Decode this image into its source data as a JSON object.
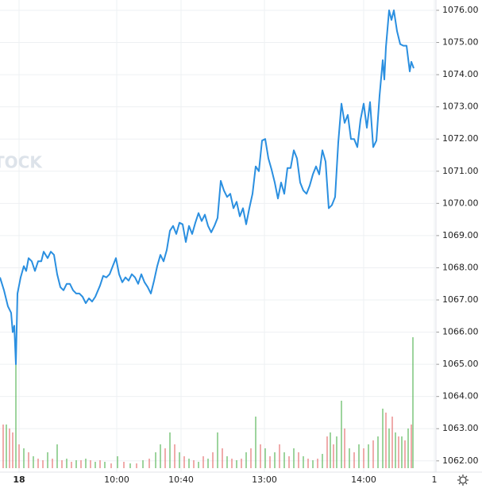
{
  "chart_data": {
    "type": "line",
    "watermark": "TOCK",
    "xlim": [
      0,
      548
    ],
    "ylim": [
      1061.65,
      1076.32
    ],
    "xticks": [
      {
        "value": 24,
        "label": "18"
      },
      {
        "value": 147,
        "label": "10:00"
      },
      {
        "value": 228,
        "label": "10:40"
      },
      {
        "value": 333,
        "label": "13:00"
      },
      {
        "value": 458,
        "label": "14:00"
      },
      {
        "value": 547,
        "label": "1"
      }
    ],
    "yticks": [
      {
        "value": 1062,
        "label": "1062.00"
      },
      {
        "value": 1063,
        "label": "1063.00"
      },
      {
        "value": 1064,
        "label": "1064.00"
      },
      {
        "value": 1065,
        "label": "1065.00"
      },
      {
        "value": 1066,
        "label": "1066.00"
      },
      {
        "value": 1067,
        "label": "1067.00"
      },
      {
        "value": 1068,
        "label": "1068.00"
      },
      {
        "value": 1069,
        "label": "1069.00"
      },
      {
        "value": 1070,
        "label": "1070.00"
      },
      {
        "value": 1071,
        "label": "1071.00"
      },
      {
        "value": 1072,
        "label": "1072.00"
      },
      {
        "value": 1073,
        "label": "1073.00"
      },
      {
        "value": 1074,
        "label": "1074.00"
      },
      {
        "value": 1075,
        "label": "1075.00"
      },
      {
        "value": 1076,
        "label": "1076.00"
      }
    ],
    "grid": true,
    "series": [
      {
        "color": "#2a8fe0",
        "x": [
          0,
          5,
          10,
          14,
          16,
          18,
          20,
          22,
          26,
          30,
          33,
          36,
          40,
          44,
          48,
          52,
          55,
          60,
          64,
          68,
          72,
          76,
          80,
          84,
          88,
          92,
          96,
          100,
          104,
          108,
          112,
          116,
          120,
          126,
          130,
          134,
          138,
          142,
          146,
          150,
          154,
          158,
          162,
          166,
          170,
          174,
          178,
          182,
          186,
          190,
          194,
          198,
          202,
          206,
          210,
          214,
          218,
          222,
          226,
          230,
          234,
          238,
          242,
          246,
          250,
          254,
          258,
          262,
          266,
          270,
          274,
          278,
          282,
          286,
          290,
          294,
          298,
          302,
          306,
          310,
          314,
          318,
          322,
          326,
          330,
          334,
          338,
          342,
          346,
          350,
          354,
          358,
          362,
          366,
          370,
          374,
          378,
          382,
          386,
          390,
          394,
          398,
          402,
          406,
          410,
          414,
          418,
          422,
          426,
          430,
          434,
          438,
          442,
          446,
          450,
          454,
          458,
          462,
          466,
          470,
          474,
          478,
          482,
          484,
          486,
          490,
          493,
          496,
          500,
          504,
          508,
          512,
          516,
          518,
          521
        ],
        "values": [
          1067.7,
          1067.3,
          1066.8,
          1066.6,
          1066.0,
          1066.2,
          1065.0,
          1067.2,
          1067.7,
          1068.05,
          1067.9,
          1068.3,
          1068.2,
          1067.9,
          1068.2,
          1068.2,
          1068.5,
          1068.3,
          1068.5,
          1068.4,
          1067.8,
          1067.4,
          1067.3,
          1067.5,
          1067.5,
          1067.3,
          1067.2,
          1067.2,
          1067.1,
          1066.9,
          1067.05,
          1066.95,
          1067.1,
          1067.45,
          1067.75,
          1067.7,
          1067.8,
          1068.05,
          1068.3,
          1067.8,
          1067.55,
          1067.7,
          1067.6,
          1067.8,
          1067.7,
          1067.5,
          1067.8,
          1067.55,
          1067.4,
          1067.2,
          1067.6,
          1068.05,
          1068.4,
          1068.2,
          1068.55,
          1069.15,
          1069.3,
          1069.05,
          1069.4,
          1069.35,
          1068.8,
          1069.3,
          1069.05,
          1069.4,
          1069.7,
          1069.45,
          1069.65,
          1069.3,
          1069.1,
          1069.3,
          1069.55,
          1070.7,
          1070.4,
          1070.2,
          1070.3,
          1069.85,
          1070.05,
          1069.6,
          1069.85,
          1069.35,
          1069.85,
          1070.3,
          1071.15,
          1071.0,
          1071.95,
          1072.0,
          1071.4,
          1071.05,
          1070.65,
          1070.15,
          1070.65,
          1070.3,
          1071.1,
          1071.1,
          1071.65,
          1071.4,
          1070.65,
          1070.4,
          1070.3,
          1070.55,
          1070.9,
          1071.15,
          1070.9,
          1071.65,
          1071.3,
          1069.85,
          1069.95,
          1070.2,
          1071.9,
          1073.1,
          1072.5,
          1072.75,
          1072.0,
          1072.0,
          1071.75,
          1072.6,
          1073.1,
          1072.35,
          1073.15,
          1071.75,
          1071.95,
          1073.35,
          1074.45,
          1073.85,
          1074.85,
          1076.0,
          1075.7,
          1076.0,
          1075.35,
          1074.95,
          1074.9,
          1074.9,
          1074.1,
          1074.4,
          1074.2
        ]
      }
    ],
    "volume": {
      "vlim": [
        0,
        200
      ],
      "up_color": "#5cb85c",
      "down_color": "#e57373",
      "x": [
        4,
        8,
        12,
        16,
        20,
        24,
        30,
        36,
        42,
        48,
        54,
        60,
        66,
        72,
        78,
        84,
        90,
        96,
        102,
        108,
        114,
        120,
        126,
        132,
        140,
        148,
        156,
        164,
        172,
        180,
        188,
        196,
        202,
        208,
        214,
        220,
        226,
        232,
        238,
        244,
        250,
        256,
        262,
        268,
        274,
        280,
        286,
        292,
        298,
        304,
        310,
        316,
        322,
        328,
        334,
        340,
        346,
        352,
        358,
        364,
        370,
        376,
        382,
        388,
        394,
        400,
        406,
        412,
        416,
        420,
        424,
        430,
        434,
        440,
        446,
        452,
        458,
        464,
        470,
        476,
        482,
        486,
        490,
        494,
        498,
        502,
        506,
        510,
        514,
        518,
        520
      ],
      "values": [
        55,
        55,
        50,
        45,
        140,
        30,
        25,
        20,
        15,
        12,
        10,
        20,
        12,
        30,
        10,
        12,
        8,
        10,
        10,
        12,
        10,
        8,
        10,
        8,
        6,
        15,
        8,
        6,
        6,
        10,
        12,
        20,
        30,
        25,
        45,
        30,
        20,
        15,
        12,
        10,
        8,
        15,
        12,
        20,
        45,
        25,
        15,
        12,
        10,
        12,
        20,
        25,
        65,
        30,
        25,
        15,
        20,
        30,
        20,
        15,
        25,
        20,
        15,
        12,
        10,
        12,
        18,
        40,
        45,
        30,
        40,
        85,
        50,
        25,
        20,
        30,
        25,
        30,
        35,
        40,
        75,
        70,
        50,
        65,
        45,
        40,
        40,
        35,
        50,
        55,
        165
      ],
      "up": [
        0,
        1,
        0,
        0,
        1,
        0,
        1,
        0,
        1,
        0,
        0,
        1,
        0,
        1,
        0,
        1,
        0,
        1,
        0,
        1,
        0,
        1,
        0,
        1,
        0,
        1,
        0,
        1,
        0,
        1,
        0,
        1,
        1,
        0,
        1,
        0,
        1,
        0,
        1,
        0,
        1,
        0,
        1,
        0,
        1,
        0,
        1,
        0,
        1,
        0,
        1,
        0,
        1,
        0,
        1,
        0,
        1,
        0,
        1,
        0,
        1,
        0,
        1,
        0,
        1,
        0,
        1,
        0,
        1,
        0,
        1,
        1,
        0,
        1,
        0,
        1,
        0,
        1,
        0,
        1,
        1,
        0,
        1,
        0,
        1,
        0,
        1,
        0,
        1,
        0,
        1
      ]
    }
  }
}
